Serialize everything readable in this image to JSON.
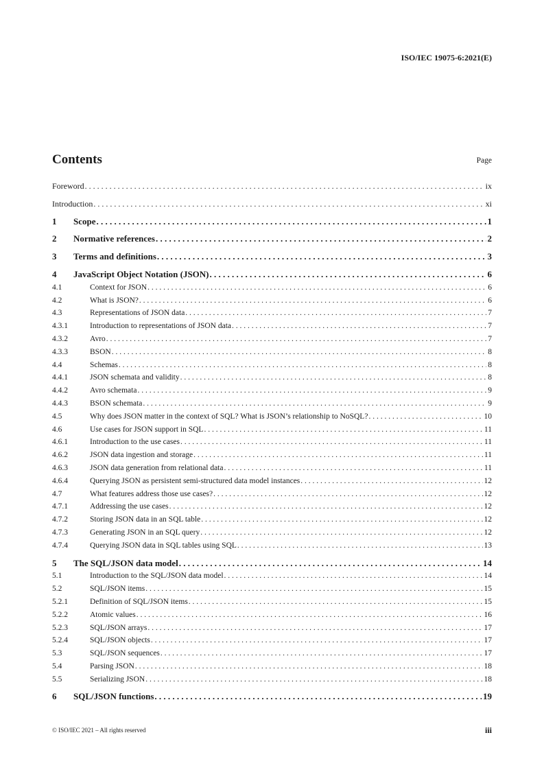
{
  "header": {
    "document_id": "ISO/IEC 19075-6:2021(E)"
  },
  "contents": {
    "title": "Contents",
    "page_label": "Page",
    "entries": [
      {
        "num": "",
        "title": "Foreword",
        "page": "ix",
        "level": "plain"
      },
      {
        "num": "",
        "title": "Introduction",
        "page": "xi",
        "level": "plain"
      },
      {
        "num": "1",
        "title": "Scope",
        "page": "1",
        "level": "major"
      },
      {
        "num": "2",
        "title": "Normative references",
        "page": "2",
        "level": "major"
      },
      {
        "num": "3",
        "title": "Terms and definitions",
        "page": "3",
        "level": "major"
      },
      {
        "num": "4",
        "title": "JavaScript Object Notation (JSON)",
        "page": "6",
        "level": "major"
      },
      {
        "num": "4.1",
        "title": "Context for JSON",
        "page": "6",
        "level": "sub"
      },
      {
        "num": "4.2",
        "title": "What is JSON?",
        "page": "6",
        "level": "sub"
      },
      {
        "num": "4.3",
        "title": "Representations of JSON data",
        "page": "7",
        "level": "sub"
      },
      {
        "num": "4.3.1",
        "title": "Introduction to representations of JSON data",
        "page": "7",
        "level": "sub"
      },
      {
        "num": "4.3.2",
        "title": "Avro",
        "page": "7",
        "level": "sub"
      },
      {
        "num": "4.3.3",
        "title": "BSON",
        "page": "8",
        "level": "sub"
      },
      {
        "num": "4.4",
        "title": "Schemas",
        "page": "8",
        "level": "sub"
      },
      {
        "num": "4.4.1",
        "title": "JSON schemata and validity",
        "page": "8",
        "level": "sub"
      },
      {
        "num": "4.4.2",
        "title": "Avro schemata",
        "page": "9",
        "level": "sub"
      },
      {
        "num": "4.4.3",
        "title": "BSON schemata",
        "page": "9",
        "level": "sub"
      },
      {
        "num": "4.5",
        "title": "Why does JSON matter in the context of SQL? What is JSON’s relationship to NoSQL?",
        "page": "10",
        "level": "sub"
      },
      {
        "num": "4.6",
        "title": "Use cases for JSON support in SQL",
        "page": "11",
        "level": "sub"
      },
      {
        "num": "4.6.1",
        "title": "Introduction to the use cases",
        "page": "11",
        "level": "sub"
      },
      {
        "num": "4.6.2",
        "title": "JSON data ingestion and storage",
        "page": "11",
        "level": "sub"
      },
      {
        "num": "4.6.3",
        "title": "JSON data generation from relational data",
        "page": "11",
        "level": "sub"
      },
      {
        "num": "4.6.4",
        "title": "Querying JSON as persistent semi-structured data model instances",
        "page": "12",
        "level": "sub"
      },
      {
        "num": "4.7",
        "title": "What features address those use cases?",
        "page": "12",
        "level": "sub"
      },
      {
        "num": "4.7.1",
        "title": "Addressing the use cases",
        "page": "12",
        "level": "sub"
      },
      {
        "num": "4.7.2",
        "title": "Storing JSON data in an SQL table",
        "page": "12",
        "level": "sub"
      },
      {
        "num": "4.7.3",
        "title": "Generating JSON in an SQL query",
        "page": "12",
        "level": "sub"
      },
      {
        "num": "4.7.4",
        "title": "Querying JSON data in SQL tables using SQL",
        "page": "13",
        "level": "sub"
      },
      {
        "num": "5",
        "title": "The SQL/JSON data model",
        "page": "14",
        "level": "major"
      },
      {
        "num": "5.1",
        "title": "Introduction to the SQL/JSON data model",
        "page": "14",
        "level": "sub"
      },
      {
        "num": "5.2",
        "title": "SQL/JSON items",
        "page": "15",
        "level": "sub"
      },
      {
        "num": "5.2.1",
        "title": "Definition of SQL/JSON items",
        "page": "15",
        "level": "sub"
      },
      {
        "num": "5.2.2",
        "title": "Atomic values",
        "page": "16",
        "level": "sub"
      },
      {
        "num": "5.2.3",
        "title": "SQL/JSON arrays",
        "page": "17",
        "level": "sub"
      },
      {
        "num": "5.2.4",
        "title": "SQL/JSON objects",
        "page": "17",
        "level": "sub"
      },
      {
        "num": "5.3",
        "title": "SQL/JSON sequences",
        "page": "17",
        "level": "sub"
      },
      {
        "num": "5.4",
        "title": "Parsing JSON",
        "page": "18",
        "level": "sub"
      },
      {
        "num": "5.5",
        "title": "Serializing JSON",
        "page": "18",
        "level": "sub"
      },
      {
        "num": "6",
        "title": "SQL/JSON functions",
        "page": "19",
        "level": "major"
      }
    ]
  },
  "footer": {
    "copyright": "© ISO/IEC 2021 – All rights reserved",
    "page_number": "iii"
  }
}
